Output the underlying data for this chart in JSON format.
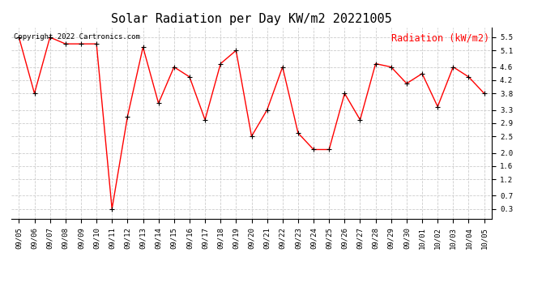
{
  "title": "Solar Radiation per Day KW/m2 20221005",
  "legend_label": "Radiation (kW/m2)",
  "copyright_text": "Copyright 2022 Cartronics.com",
  "line_color": "red",
  "marker_color": "black",
  "background_color": "#ffffff",
  "grid_color": "#cccccc",
  "dates": [
    "09/05",
    "09/06",
    "09/07",
    "09/08",
    "09/09",
    "09/10",
    "09/11",
    "09/12",
    "09/13",
    "09/14",
    "09/15",
    "09/16",
    "09/17",
    "09/18",
    "09/19",
    "09/20",
    "09/21",
    "09/22",
    "09/23",
    "09/24",
    "09/25",
    "09/26",
    "09/27",
    "09/28",
    "09/29",
    "09/30",
    "10/01",
    "10/02",
    "10/03",
    "10/04",
    "10/05"
  ],
  "values": [
    5.5,
    3.8,
    5.5,
    5.3,
    5.3,
    5.3,
    0.3,
    3.1,
    5.2,
    3.5,
    4.6,
    4.3,
    3.0,
    4.7,
    5.1,
    2.5,
    3.3,
    4.6,
    2.6,
    2.1,
    2.1,
    3.8,
    3.0,
    4.7,
    4.6,
    4.1,
    4.4,
    3.4,
    4.6,
    4.3,
    3.8
  ],
  "yticks": [
    0.3,
    0.7,
    1.2,
    1.6,
    2.0,
    2.5,
    2.9,
    3.3,
    3.8,
    4.2,
    4.6,
    5.1,
    5.5
  ],
  "ylim": [
    0.0,
    5.8
  ],
  "title_fontsize": 11,
  "tick_fontsize": 6.5,
  "legend_fontsize": 8.5,
  "copyright_fontsize": 6.5
}
